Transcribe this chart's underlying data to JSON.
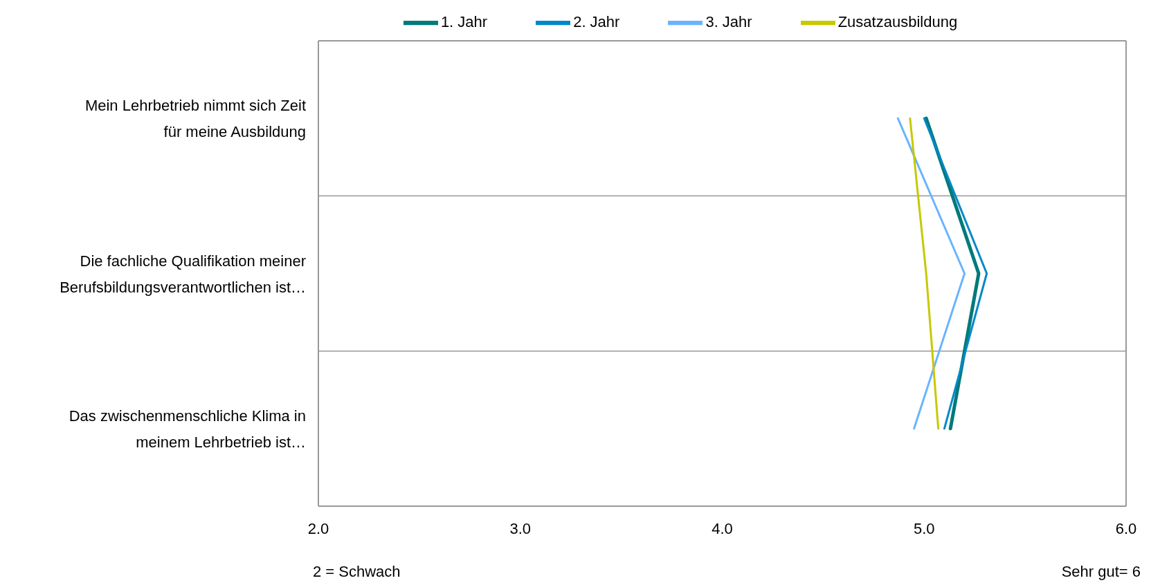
{
  "chart_data": {
    "type": "line",
    "orientation": "horizontal",
    "categories": [
      "Mein Lehrbetrieb nimmt sich Zeit für meine Ausbildung",
      "Die fachliche Qualifikation meiner Berufsbildungsverantwortlichen ist…",
      "Das zwischenmenschliche Klima in meinem Lehrbetrieb ist…"
    ],
    "series": [
      {
        "name": "1. Jahr",
        "color": "#007a7a",
        "values": [
          5.01,
          5.27,
          5.13
        ]
      },
      {
        "name": "2. Jahr",
        "color": "#0088c8",
        "values": [
          5.0,
          5.31,
          5.1
        ]
      },
      {
        "name": "3. Jahr",
        "color": "#6ab4ff",
        "values": [
          4.87,
          5.2,
          4.95
        ]
      },
      {
        "name": "Zusatzausbildung",
        "color": "#c8c800",
        "values": [
          4.93,
          5.01,
          5.07
        ]
      }
    ],
    "xlim": [
      2,
      6
    ],
    "xticks": [
      {
        "value": 2,
        "label": "2.0"
      },
      {
        "value": 3,
        "label": "3.0"
      },
      {
        "value": 4,
        "label": "4.0"
      },
      {
        "value": 5,
        "label": "5.0"
      },
      {
        "value": 6,
        "label": "6.0"
      }
    ],
    "grid": "y",
    "legend": "top",
    "marker": "none",
    "line_style": "solid",
    "annotations": [
      "2 = Schwach",
      "Sehr gut= 6"
    ]
  }
}
